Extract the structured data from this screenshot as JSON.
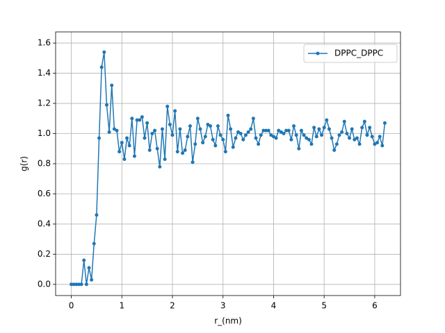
{
  "chart_data": {
    "type": "line",
    "xlabel": "r_(nm)",
    "ylabel": "g(r)",
    "x": [
      0,
      0.05,
      0.1,
      0.15,
      0.2,
      0.25,
      0.3,
      0.35,
      0.4,
      0.45,
      0.5,
      0.55,
      0.6,
      0.65,
      0.7,
      0.75,
      0.8,
      0.85,
      0.9,
      0.95,
      1,
      1.05,
      1.1,
      1.15,
      1.2,
      1.25,
      1.3,
      1.35,
      1.4,
      1.45,
      1.5,
      1.55,
      1.6,
      1.65,
      1.7,
      1.75,
      1.8,
      1.85,
      1.9,
      1.95,
      2,
      2.05,
      2.1,
      2.15,
      2.2,
      2.25,
      2.3,
      2.35,
      2.4,
      2.45,
      2.5,
      2.55,
      2.6,
      2.65,
      2.7,
      2.75,
      2.8,
      2.85,
      2.9,
      2.95,
      3,
      3.05,
      3.1,
      3.15,
      3.2,
      3.25,
      3.3,
      3.35,
      3.4,
      3.45,
      3.5,
      3.55,
      3.6,
      3.65,
      3.7,
      3.75,
      3.8,
      3.85,
      3.9,
      3.95,
      4,
      4.05,
      4.1,
      4.15,
      4.2,
      4.25,
      4.3,
      4.35,
      4.4,
      4.45,
      4.5,
      4.55,
      4.6,
      4.65,
      4.7,
      4.75,
      4.8,
      4.85,
      4.9,
      4.95,
      5,
      5.05,
      5.1,
      5.15,
      5.2,
      5.25,
      5.3,
      5.35,
      5.4,
      5.45,
      5.5,
      5.55,
      5.6,
      5.65,
      5.7,
      5.75,
      5.8,
      5.85,
      5.9,
      5.95,
      6,
      6.05,
      6.1,
      6.15,
      6.2
    ],
    "series": [
      {
        "name": "DPPC_DPPC",
        "color": "#1f77b4",
        "values": [
          0,
          0,
          0,
          0,
          0,
          0.16,
          0,
          0.11,
          0.03,
          0.27,
          0.46,
          0.97,
          1.44,
          1.54,
          1.19,
          1.01,
          1.32,
          1.03,
          1.02,
          0.88,
          0.94,
          0.83,
          0.97,
          0.92,
          1.1,
          0.85,
          1.09,
          1.09,
          1.11,
          0.97,
          1.07,
          0.89,
          1.0,
          1.02,
          0.9,
          0.78,
          1.03,
          0.83,
          1.18,
          1.06,
          0.99,
          1.15,
          0.88,
          1.03,
          0.87,
          0.89,
          0.98,
          1.05,
          0.81,
          0.93,
          1.1,
          1.03,
          0.94,
          0.98,
          1.06,
          1.05,
          0.96,
          0.92,
          1.05,
          0.99,
          0.96,
          0.88,
          1.12,
          1.03,
          0.91,
          0.97,
          1.01,
          1.0,
          0.96,
          0.99,
          1.01,
          1.03,
          1.1,
          0.97,
          0.93,
          0.99,
          1.02,
          1.02,
          1.02,
          0.99,
          0.98,
          0.97,
          1.02,
          1.01,
          1.0,
          1.02,
          1.02,
          0.96,
          1.05,
          0.99,
          0.9,
          1.02,
          0.99,
          0.97,
          0.96,
          0.93,
          1.04,
          0.98,
          1.03,
          0.99,
          1.04,
          1.09,
          1.03,
          0.97,
          0.89,
          0.93,
          0.99,
          1.01,
          1.08,
          1.0,
          0.97,
          1.03,
          0.96,
          0.97,
          0.93,
          1.04,
          1.08,
          0.99,
          1.04,
          0.98,
          0.93,
          0.94,
          0.98,
          0.92,
          1.07
        ]
      }
    ],
    "xlim": [
      -0.31,
      6.51
    ],
    "ylim": [
      -0.074,
      1.674
    ],
    "xticks": [
      0,
      1,
      2,
      3,
      4,
      5,
      6
    ],
    "yticks": [
      {
        "value": 0,
        "label": "0.0"
      },
      {
        "value": 0.2,
        "label": "0.2"
      },
      {
        "value": 0.4,
        "label": "0.4"
      },
      {
        "value": 0.6,
        "label": "0.6"
      },
      {
        "value": 0.8,
        "label": "0.8"
      },
      {
        "value": 1,
        "label": "1.0"
      },
      {
        "value": 1.2,
        "label": "1.2"
      },
      {
        "value": 1.4,
        "label": "1.4"
      },
      {
        "value": 1.6,
        "label": "1.6"
      }
    ],
    "grid": true,
    "legend": "upper right"
  }
}
